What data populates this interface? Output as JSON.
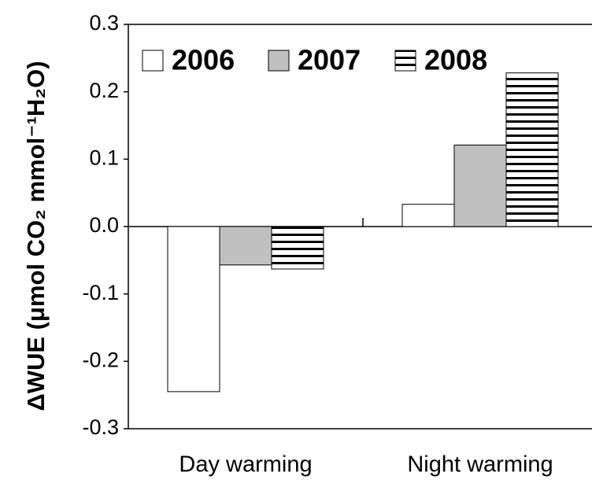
{
  "chart_data": {
    "type": "bar",
    "y_label": "ΔWUE (μmol CO₂ mmol⁻¹H₂O)",
    "categories": [
      "Day warming",
      "Night warming"
    ],
    "series": [
      {
        "name": "2006",
        "color": "#ffffff",
        "values": [
          -0.245,
          0.033
        ]
      },
      {
        "name": "2007",
        "color": "#c0c0c0",
        "values": [
          -0.057,
          0.121
        ]
      },
      {
        "name": "2008",
        "color": "#ffffff",
        "hatch": "horizontal",
        "values": [
          -0.063,
          0.228
        ]
      }
    ],
    "ylim": [
      -0.3,
      0.3
    ],
    "yticks": [
      0.3,
      0.2,
      0.1,
      {
        "value": 0,
        "label": "0.0"
      },
      -0.1,
      -0.2,
      -0.3
    ],
    "legend": "top-left"
  }
}
